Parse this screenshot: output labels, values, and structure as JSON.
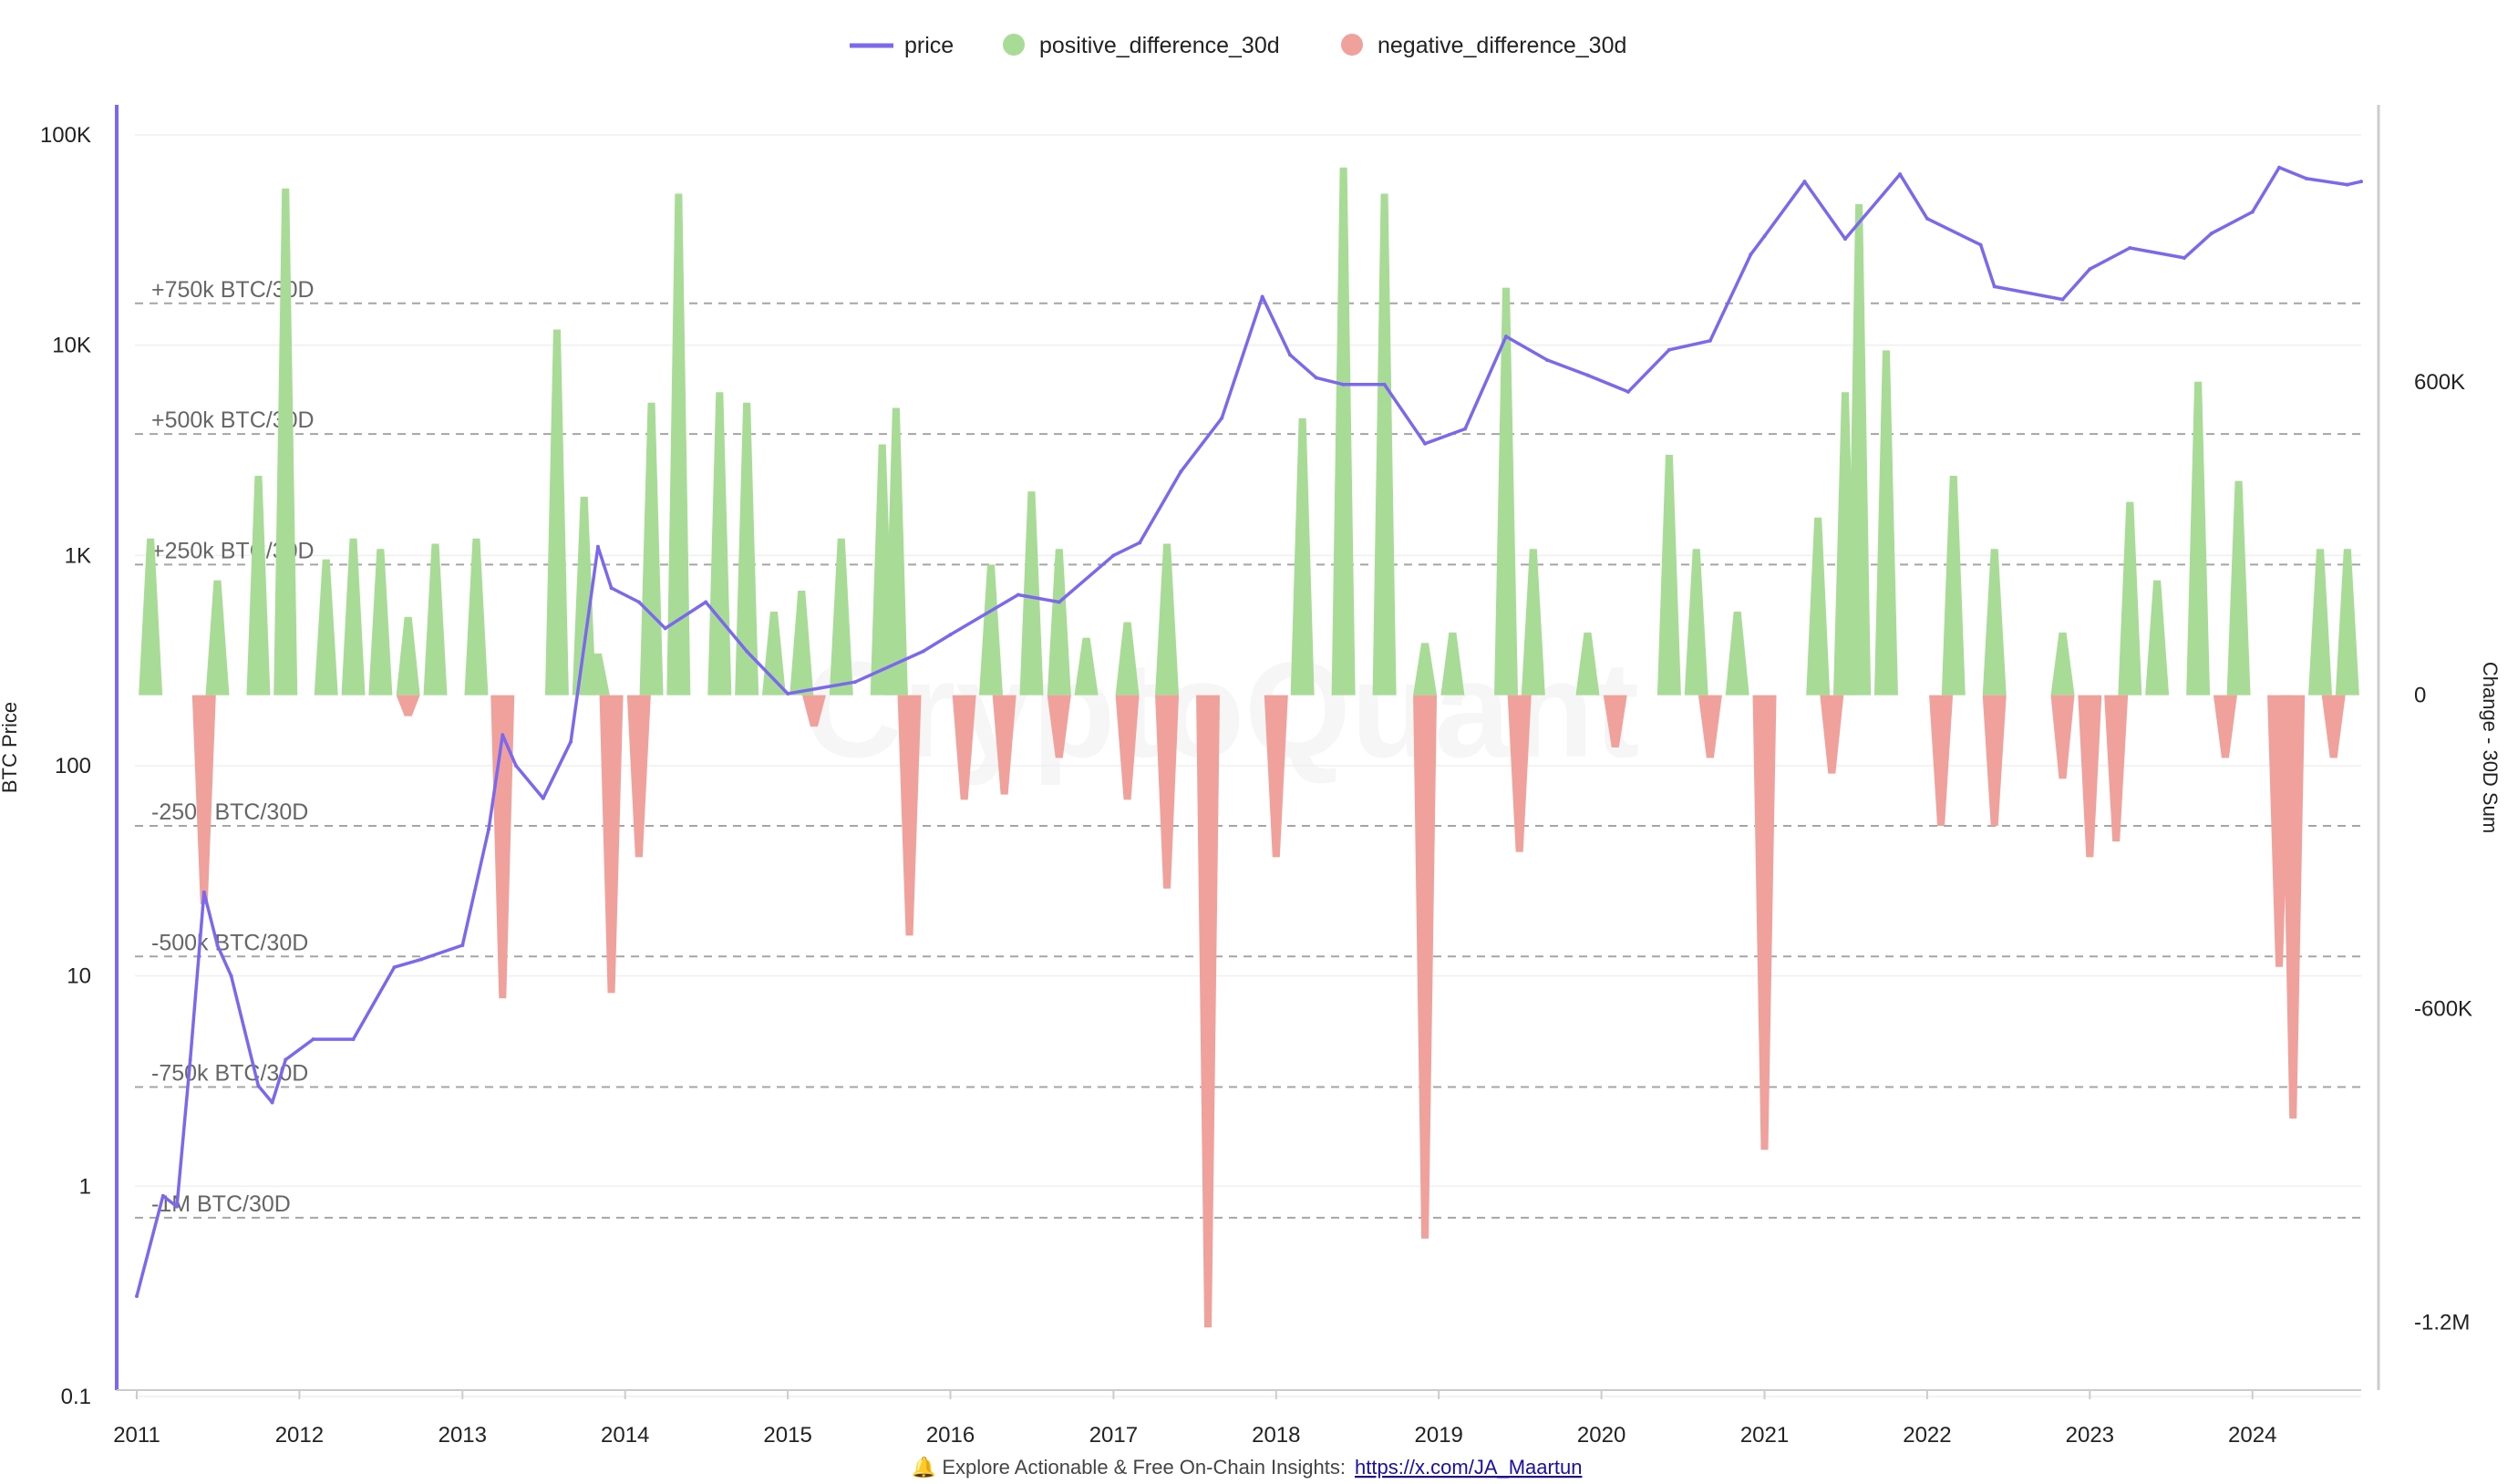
{
  "legend": [
    {
      "label": "price",
      "color": "#7b68ee",
      "kind": "line"
    },
    {
      "label": "positive_difference_30d",
      "color": "#a8dc96",
      "kind": "dot"
    },
    {
      "label": "negative_difference_30d",
      "color": "#f1a19b",
      "kind": "dot"
    }
  ],
  "watermark": "CryptoQuant",
  "footer": {
    "icon": "bell-icon",
    "text": "🔔 Explore Actionable & Free On-Chain Insights:",
    "link": "https://x.com/JA_Maartun"
  },
  "chart_data": {
    "type": "line",
    "x_range": [
      "2011-01-01",
      "2024-09-01"
    ],
    "x_ticks": [
      "2011",
      "2012",
      "2013",
      "2014",
      "2015",
      "2016",
      "2017",
      "2018",
      "2019",
      "2020",
      "2021",
      "2022",
      "2023",
      "2024"
    ],
    "y_left": {
      "label": "BTC Price",
      "scale": "log",
      "range": [
        0.1,
        100000
      ],
      "ticks": [
        {
          "value": 0.1,
          "label": "0.1"
        },
        {
          "value": 1,
          "label": "1"
        },
        {
          "value": 10,
          "label": "10"
        },
        {
          "value": 100,
          "label": "100"
        },
        {
          "value": 1000,
          "label": "1K"
        },
        {
          "value": 10000,
          "label": "10K"
        },
        {
          "value": 100000,
          "label": "100K"
        }
      ]
    },
    "y_right": {
      "label": "Change - 30D Sum",
      "scale": "linear",
      "range": [
        -1330000,
        1130000
      ],
      "ticks": [
        {
          "value": 600000,
          "label": "600K"
        },
        {
          "value": 0,
          "label": "0"
        },
        {
          "value": -600000,
          "label": "-600K"
        },
        {
          "value": -1200000,
          "label": "-1.2M"
        }
      ]
    },
    "reference_lines": [
      {
        "value": 750000,
        "label": "+750k BTC/30D"
      },
      {
        "value": 500000,
        "label": "+500k BTC/30D"
      },
      {
        "value": 250000,
        "label": "+250k BTC/30D"
      },
      {
        "value": -250000,
        "label": "-250k BTC/30D"
      },
      {
        "value": -500000,
        "label": "-500k BTC/30D"
      },
      {
        "value": -750000,
        "label": "-750k BTC/30D"
      },
      {
        "value": -1000000,
        "label": "-1M BTC/30D"
      }
    ],
    "series": [
      {
        "name": "price",
        "color": "#7b68ee",
        "axis": "left",
        "x": [
          "2011-01",
          "2011-03",
          "2011-04",
          "2011-05",
          "2011-06",
          "2011-07",
          "2011-08",
          "2011-10",
          "2011-11",
          "2011-12",
          "2012-02",
          "2012-05",
          "2012-08",
          "2012-10",
          "2013-01",
          "2013-03",
          "2013-04",
          "2013-05",
          "2013-07",
          "2013-09",
          "2013-11",
          "2013-12",
          "2014-02",
          "2014-04",
          "2014-07",
          "2014-10",
          "2015-01",
          "2015-06",
          "2015-11",
          "2016-01",
          "2016-06",
          "2016-09",
          "2017-01",
          "2017-03",
          "2017-06",
          "2017-09",
          "2017-12",
          "2018-02",
          "2018-04",
          "2018-06",
          "2018-09",
          "2018-12",
          "2019-03",
          "2019-06",
          "2019-09",
          "2019-12",
          "2020-03",
          "2020-06",
          "2020-09",
          "2020-12",
          "2021-01",
          "2021-04",
          "2021-07",
          "2021-11",
          "2022-01",
          "2022-05",
          "2022-06",
          "2022-11",
          "2023-01",
          "2023-04",
          "2023-08",
          "2023-10",
          "2024-01",
          "2024-03",
          "2024-05",
          "2024-08",
          "2024-09"
        ],
        "y": [
          0.3,
          0.9,
          0.8,
          4,
          25,
          14,
          10,
          3,
          2.5,
          4,
          5,
          5,
          11,
          12,
          14,
          50,
          140,
          100,
          70,
          130,
          1100,
          700,
          600,
          450,
          600,
          350,
          220,
          250,
          350,
          420,
          650,
          600,
          1000,
          1150,
          2500,
          4500,
          17000,
          9000,
          7000,
          6500,
          6500,
          3400,
          4000,
          11000,
          8500,
          7200,
          6000,
          9500,
          10500,
          27000,
          33000,
          60000,
          32000,
          65000,
          40000,
          30000,
          19000,
          16500,
          23000,
          29000,
          26000,
          34000,
          43000,
          70000,
          62000,
          58000,
          60000
        ]
      },
      {
        "name": "positive_difference_30d",
        "color": "#a8dc96",
        "axis": "right",
        "x": [
          "2011-02",
          "2011-07",
          "2011-10",
          "2011-12",
          "2012-03",
          "2012-05",
          "2012-07",
          "2012-09",
          "2012-11",
          "2013-02",
          "2013-08",
          "2013-10",
          "2013-11",
          "2014-03",
          "2014-05",
          "2014-08",
          "2014-10",
          "2014-12",
          "2015-02",
          "2015-05",
          "2015-08",
          "2015-09",
          "2016-04",
          "2016-07",
          "2016-09",
          "2016-11",
          "2017-02",
          "2017-05",
          "2018-03",
          "2018-06",
          "2018-09",
          "2018-12",
          "2019-02",
          "2019-06",
          "2019-08",
          "2019-12",
          "2020-06",
          "2020-08",
          "2020-11",
          "2021-05",
          "2021-07",
          "2021-08",
          "2021-10",
          "2022-03",
          "2022-06",
          "2022-11",
          "2023-04",
          "2023-06",
          "2023-09",
          "2023-12",
          "2024-06",
          "2024-08"
        ],
        "y": [
          300000,
          220000,
          420000,
          970000,
          260000,
          300000,
          280000,
          150000,
          290000,
          300000,
          700000,
          380000,
          80000,
          560000,
          960000,
          580000,
          560000,
          160000,
          200000,
          300000,
          480000,
          550000,
          250000,
          390000,
          280000,
          110000,
          140000,
          290000,
          530000,
          1010000,
          960000,
          100000,
          120000,
          780000,
          280000,
          120000,
          460000,
          280000,
          160000,
          340000,
          580000,
          940000,
          660000,
          420000,
          280000,
          120000,
          370000,
          220000,
          600000,
          410000,
          280000,
          280000
        ]
      },
      {
        "name": "negative_difference_30d",
        "color": "#f1a19b",
        "axis": "right",
        "x": [
          "2011-06",
          "2012-09",
          "2013-04",
          "2013-12",
          "2014-02",
          "2015-03",
          "2015-10",
          "2016-02",
          "2016-05",
          "2016-09",
          "2017-02",
          "2017-05",
          "2017-08",
          "2018-01",
          "2018-12",
          "2019-07",
          "2020-02",
          "2020-09",
          "2021-01",
          "2021-06",
          "2022-02",
          "2022-06",
          "2022-11",
          "2023-01",
          "2023-03",
          "2023-11",
          "2024-03",
          "2024-04",
          "2024-07"
        ],
        "y": [
          -400000,
          -40000,
          -580000,
          -570000,
          -310000,
          -60000,
          -460000,
          -200000,
          -190000,
          -120000,
          -200000,
          -370000,
          -1210000,
          -310000,
          -1040000,
          -300000,
          -100000,
          -120000,
          -870000,
          -150000,
          -250000,
          -250000,
          -160000,
          -310000,
          -280000,
          -120000,
          -520000,
          -810000,
          -120000
        ]
      }
    ]
  }
}
